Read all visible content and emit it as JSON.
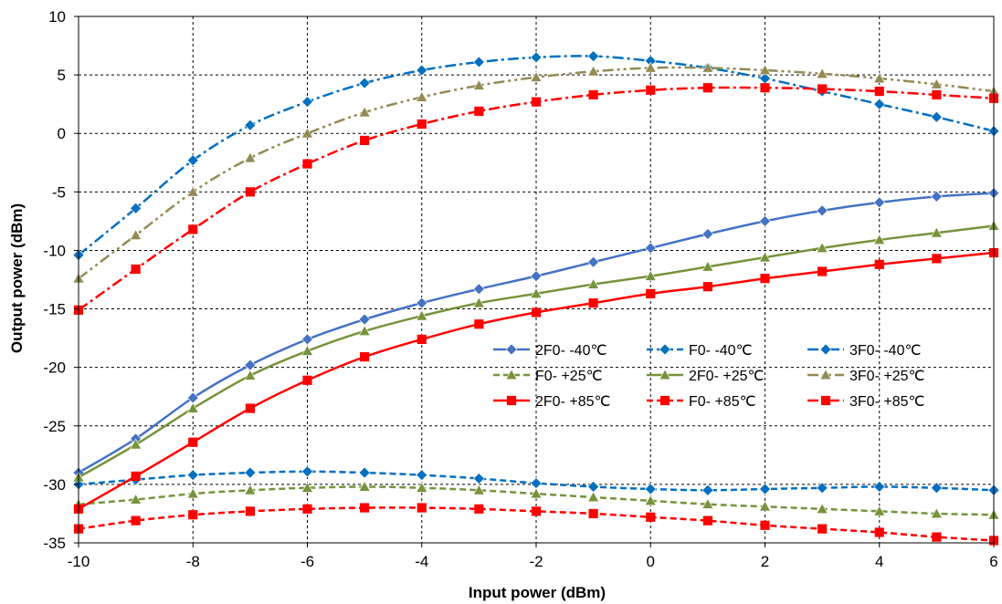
{
  "chart_data": {
    "type": "line",
    "title": "",
    "xlabel": "Input power (dBm)",
    "ylabel": "Output power (dBm)",
    "xlim": [
      -10,
      6
    ],
    "ylim": [
      -35,
      10
    ],
    "xticks": [
      "-10",
      "-8",
      "-6",
      "-4",
      "-2",
      "0",
      "2",
      "4",
      "6"
    ],
    "yticks": [
      "10",
      "5",
      "0",
      "-5",
      "-10",
      "-15",
      "-20",
      "-25",
      "-30",
      "-35"
    ],
    "grid": true,
    "legend_position": "lower-right",
    "x": [
      -10,
      -9,
      -8,
      -7,
      -6,
      -5,
      -4,
      -3,
      -2,
      -1,
      0,
      1,
      2,
      3,
      4,
      5,
      6
    ],
    "series": [
      {
        "name": "2F0- -40℃",
        "color": "#4472C4",
        "marker": "diamond",
        "line": "solid",
        "values": [
          -29.0,
          -26.1,
          -22.6,
          -19.8,
          -17.6,
          -15.9,
          -14.5,
          -13.3,
          -12.2,
          -11.0,
          -9.8,
          -8.6,
          -7.5,
          -6.6,
          -5.9,
          -5.4,
          -5.1
        ]
      },
      {
        "name": "F0- -40℃",
        "color": "#0070C0",
        "marker": "diamond",
        "line": "dash",
        "values": [
          -30.0,
          -29.6,
          -29.2,
          -29.0,
          -28.9,
          -29.0,
          -29.2,
          -29.5,
          -29.9,
          -30.2,
          -30.4,
          -30.5,
          -30.4,
          -30.3,
          -30.2,
          -30.3,
          -30.5
        ]
      },
      {
        "name": "3F0- -40℃",
        "color": "#0070C0",
        "marker": "diamond",
        "line": "dashdot",
        "values": [
          -10.4,
          -6.4,
          -2.3,
          0.7,
          2.7,
          4.3,
          5.4,
          6.1,
          6.5,
          6.6,
          6.2,
          5.6,
          4.7,
          3.6,
          2.5,
          1.4,
          0.2
        ]
      },
      {
        "name": "F0- +25℃",
        "color": "#77933C",
        "marker": "triangle",
        "line": "dash",
        "values": [
          -31.7,
          -31.3,
          -30.8,
          -30.5,
          -30.3,
          -30.2,
          -30.3,
          -30.5,
          -30.8,
          -31.1,
          -31.4,
          -31.7,
          -31.9,
          -32.1,
          -32.3,
          -32.5,
          -32.6
        ]
      },
      {
        "name": "2F0- +25℃",
        "color": "#77933C",
        "marker": "triangle",
        "line": "solid",
        "values": [
          -29.4,
          -26.6,
          -23.5,
          -20.7,
          -18.6,
          -16.9,
          -15.6,
          -14.5,
          -13.7,
          -12.9,
          -12.2,
          -11.4,
          -10.6,
          -9.8,
          -9.1,
          -8.5,
          -7.9
        ]
      },
      {
        "name": "3F0- +25℃",
        "color": "#948A54",
        "marker": "triangle",
        "line": "dashdotdot",
        "values": [
          -12.4,
          -8.7,
          -5.0,
          -2.1,
          0.0,
          1.8,
          3.1,
          4.1,
          4.8,
          5.3,
          5.6,
          5.6,
          5.4,
          5.1,
          4.7,
          4.2,
          3.6
        ]
      },
      {
        "name": "2F0- +85℃",
        "color": "#FF0000",
        "marker": "square",
        "line": "solid",
        "values": [
          -32.1,
          -29.3,
          -26.4,
          -23.5,
          -21.1,
          -19.1,
          -17.6,
          -16.3,
          -15.3,
          -14.5,
          -13.7,
          -13.1,
          -12.4,
          -11.8,
          -11.2,
          -10.7,
          -10.2
        ]
      },
      {
        "name": "F0- +85℃",
        "color": "#FF0000",
        "marker": "square",
        "line": "dash",
        "values": [
          -33.8,
          -33.1,
          -32.6,
          -32.3,
          -32.1,
          -32.0,
          -32.0,
          -32.1,
          -32.3,
          -32.5,
          -32.8,
          -33.1,
          -33.5,
          -33.8,
          -34.1,
          -34.5,
          -34.8
        ]
      },
      {
        "name": "3F0- +85℃",
        "color": "#FF0000",
        "marker": "square",
        "line": "dashdot",
        "values": [
          -15.1,
          -11.6,
          -8.2,
          -5.0,
          -2.6,
          -0.6,
          0.8,
          1.9,
          2.7,
          3.3,
          3.7,
          3.9,
          3.9,
          3.8,
          3.6,
          3.3,
          3.0
        ]
      }
    ],
    "legend_order": [
      0,
      3,
      6,
      1,
      4,
      7,
      2,
      5,
      8
    ]
  }
}
